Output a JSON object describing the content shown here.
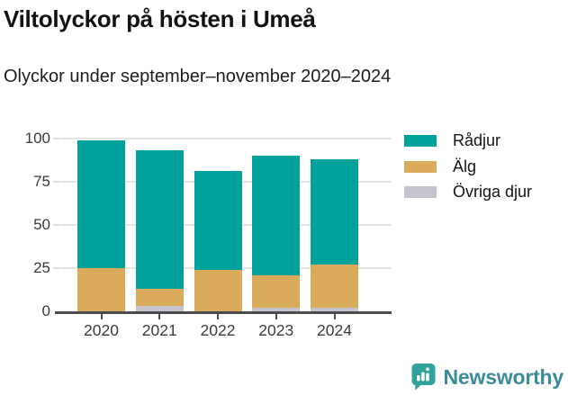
{
  "title": "Viltolyckor på hösten i Umeå",
  "subtitle": "Olyckor under september–november 2020–2024",
  "chart_data": {
    "type": "bar",
    "stacked": true,
    "title": "Viltolyckor på hösten i Umeå",
    "subtitle": "Olyckor under september–november 2020–2024",
    "categories": [
      "2020",
      "2021",
      "2022",
      "2023",
      "2024"
    ],
    "series": [
      {
        "name": "Rådjur",
        "color": "#00A29B",
        "values": [
          74,
          80,
          57,
          69,
          61
        ]
      },
      {
        "name": "Älg",
        "color": "#D9AB5A",
        "values": [
          25,
          10,
          24,
          19,
          25
        ]
      },
      {
        "name": "Övriga djur",
        "color": "#C5C3CE",
        "values": [
          0,
          3,
          0,
          2,
          2
        ]
      }
    ],
    "totals": [
      99,
      93,
      81,
      90,
      88
    ],
    "xlabel": "",
    "ylabel": "",
    "ylim": [
      0,
      100
    ],
    "yticks": [
      0,
      25,
      50,
      75,
      100
    ],
    "grid": true,
    "legend_position": "top-right"
  },
  "legend": {
    "items": [
      "Rådjur",
      "Älg",
      "Övriga djur"
    ]
  },
  "footer": {
    "brand": "Newsworthy",
    "brand_color": "#3B8B9A",
    "icon": "speech-bubble-bar-chart-icon",
    "icon_color": "#2FA39B"
  }
}
